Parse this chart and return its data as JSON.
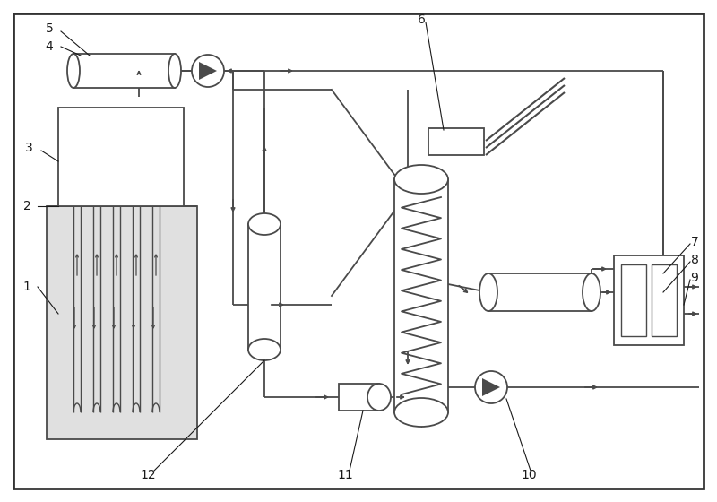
{
  "bg_color": "#ffffff",
  "line_color": "#4a4a4a",
  "fig_width": 8.0,
  "fig_height": 5.6,
  "dpi": 100
}
